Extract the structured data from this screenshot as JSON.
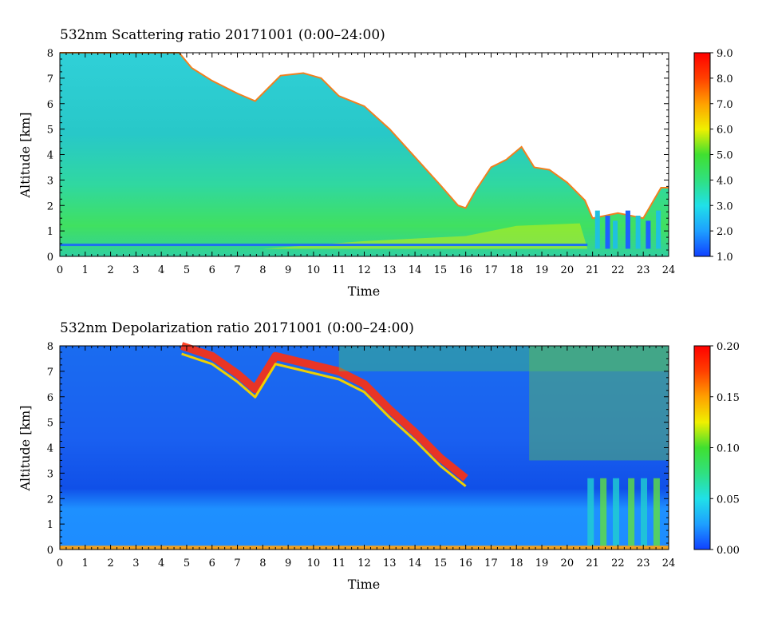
{
  "chart_data": [
    {
      "type": "heatmap",
      "title": "532nm Scattering ratio  20171001 (0:00–24:00)",
      "xlabel": "Time",
      "ylabel": "Altitude [km]",
      "xlim": [
        0,
        24
      ],
      "ylim": [
        0,
        8
      ],
      "x_ticks": [
        "0",
        "1",
        "2",
        "3",
        "4",
        "5",
        "6",
        "7",
        "8",
        "9",
        "10",
        "11",
        "12",
        "13",
        "14",
        "15",
        "16",
        "17",
        "18",
        "19",
        "20",
        "21",
        "22",
        "23",
        "24"
      ],
      "y_ticks": [
        "0",
        "1",
        "2",
        "3",
        "4",
        "5",
        "6",
        "7",
        "8"
      ],
      "colorbar": {
        "min": 1.0,
        "max": 9.0,
        "ticks": [
          "1.0",
          "2.0",
          "3.0",
          "4.0",
          "5.0",
          "6.0",
          "7.0",
          "8.0",
          "9.0"
        ],
        "colors": [
          "#1040ff",
          "#1ea0ff",
          "#20e0e8",
          "#30e080",
          "#40e030",
          "#f0f000",
          "#ffa000",
          "#ff4000",
          "#ff0000"
        ]
      },
      "background_regions": "white (no data / clouds) above cloud top boundary",
      "cloud_top_km": [
        [
          0,
          8
        ],
        [
          4.7,
          8
        ],
        [
          5.2,
          7.4
        ],
        [
          6,
          6.9
        ],
        [
          7,
          6.4
        ],
        [
          7.7,
          6.1
        ],
        [
          8.2,
          6.6
        ],
        [
          8.7,
          7.1
        ],
        [
          9.6,
          7.2
        ],
        [
          10.3,
          7.0
        ],
        [
          11,
          6.3
        ],
        [
          12,
          5.9
        ],
        [
          13,
          5.0
        ],
        [
          14,
          3.9
        ],
        [
          15,
          2.8
        ],
        [
          15.7,
          2.0
        ],
        [
          16,
          1.9
        ],
        [
          16.4,
          2.6
        ],
        [
          17,
          3.5
        ],
        [
          17.6,
          3.8
        ],
        [
          18.2,
          4.3
        ],
        [
          18.7,
          3.5
        ],
        [
          19.3,
          3.4
        ],
        [
          20,
          2.9
        ],
        [
          20.7,
          2.2
        ],
        [
          21,
          1.5
        ],
        [
          22,
          1.7
        ],
        [
          23,
          1.5
        ],
        [
          23.7,
          2.7
        ],
        [
          24,
          2.7
        ]
      ]
    },
    {
      "type": "heatmap",
      "title": "532nm Depolarization ratio  20171001 (0:00–24:00)",
      "xlabel": "Time",
      "ylabel": "Altitude [km]",
      "xlim": [
        0,
        24
      ],
      "ylim": [
        0,
        8
      ],
      "x_ticks": [
        "0",
        "1",
        "2",
        "3",
        "4",
        "5",
        "6",
        "7",
        "8",
        "9",
        "10",
        "11",
        "12",
        "13",
        "14",
        "15",
        "16",
        "17",
        "18",
        "19",
        "20",
        "21",
        "22",
        "23",
        "24"
      ],
      "y_ticks": [
        "0",
        "1",
        "2",
        "3",
        "4",
        "5",
        "6",
        "7",
        "8"
      ],
      "colorbar": {
        "min": 0.0,
        "max": 0.2,
        "ticks": [
          "0.00",
          "0.05",
          "0.10",
          "0.15",
          "0.20"
        ],
        "colors": [
          "#1040ff",
          "#1ea0ff",
          "#20e0e8",
          "#30e080",
          "#40e030",
          "#f0f000",
          "#ffa000",
          "#ff4000",
          "#ff0000"
        ]
      },
      "high_depol_band_km": [
        [
          4.8,
          8
        ],
        [
          6,
          7.6
        ],
        [
          7,
          6.9
        ],
        [
          7.7,
          6.3
        ],
        [
          8.5,
          7.6
        ],
        [
          11,
          7.0
        ],
        [
          12,
          6.5
        ],
        [
          13,
          5.5
        ],
        [
          14,
          4.6
        ],
        [
          15,
          3.6
        ],
        [
          16,
          2.8
        ]
      ]
    }
  ]
}
